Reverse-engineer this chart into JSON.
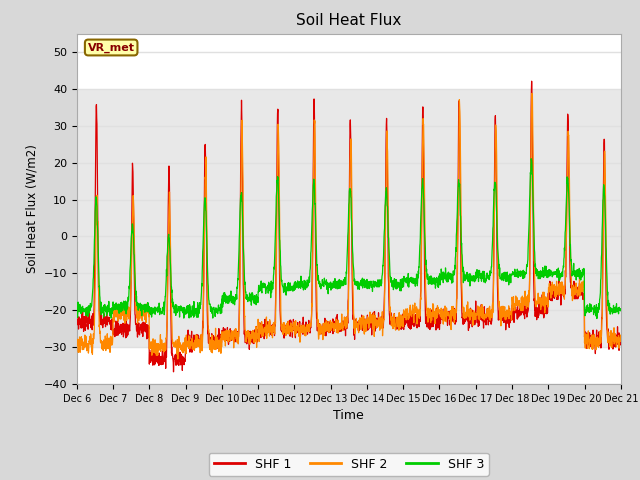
{
  "title": "Soil Heat Flux",
  "ylabel": "Soil Heat Flux (W/m2)",
  "xlabel": "Time",
  "ylim": [
    -40,
    55
  ],
  "yticks": [
    -40,
    -30,
    -20,
    -10,
    0,
    10,
    20,
    30,
    40,
    50
  ],
  "figure_bg_color": "#d8d8d8",
  "axes_bg_color": "#ffffff",
  "grid_color": "#e0e0e0",
  "series_colors": [
    "#dd0000",
    "#ff8800",
    "#00cc00"
  ],
  "series_names": [
    "SHF 1",
    "SHF 2",
    "SHF 3"
  ],
  "annotation_text": "VR_met",
  "annotation_bg": "#ffffaa",
  "annotation_border": "#886600",
  "annotation_text_color": "#880000",
  "n_days": 15,
  "start_day": 6,
  "points_per_day": 144
}
